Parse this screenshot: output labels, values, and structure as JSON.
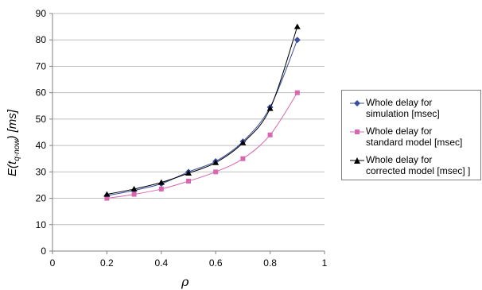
{
  "chart_data": {
    "type": "line",
    "title": "",
    "xlabel": "ρ",
    "ylabel_main": "E(t",
    "ylabel_sub": "q-now",
    "ylabel_unit": ") [ms]",
    "xlim": [
      0,
      1
    ],
    "ylim": [
      0,
      90
    ],
    "xticks": [
      "0",
      "0.2",
      "0.4",
      "0.6",
      "0.8",
      "1"
    ],
    "yticks": [
      "0",
      "10",
      "20",
      "30",
      "40",
      "50",
      "60",
      "70",
      "80",
      "90"
    ],
    "grid": "horizontal",
    "legend_position": "right",
    "series": [
      {
        "name": "Whole delay for simulation [msec]",
        "name_lines": [
          "Whole delay for",
          "simulation [msec]"
        ],
        "marker": "diamond",
        "color": "#3b4fa0",
        "x": [
          0.2,
          0.3,
          0.4,
          0.5,
          0.6,
          0.7,
          0.8,
          0.9
        ],
        "y": [
          21,
          23,
          25.5,
          30,
          34,
          41.5,
          54.5,
          80
        ]
      },
      {
        "name": "Whole delay for standard model [msec]",
        "name_lines": [
          "Whole delay for",
          "standard model [msec]"
        ],
        "marker": "square",
        "color": "#d966b0",
        "x": [
          0.2,
          0.3,
          0.4,
          0.5,
          0.6,
          0.7,
          0.8,
          0.9
        ],
        "y": [
          20,
          21.5,
          23.5,
          26.5,
          30,
          35,
          44,
          60
        ]
      },
      {
        "name": "Whole delay for corrected model [msec] ]",
        "name_lines": [
          "Whole delay for",
          "corrected model [msec] ]"
        ],
        "marker": "triangle",
        "color": "#000000",
        "x": [
          0.2,
          0.3,
          0.4,
          0.5,
          0.6,
          0.7,
          0.8,
          0.9
        ],
        "y": [
          21.5,
          23.5,
          26,
          29.5,
          33.5,
          41,
          54,
          85
        ]
      }
    ]
  }
}
